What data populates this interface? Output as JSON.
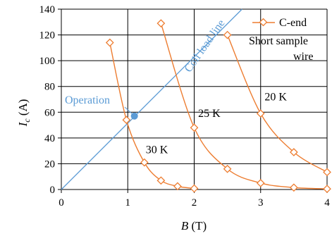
{
  "chart_data": {
    "type": "scatter",
    "xlabel": "B (T)",
    "ylabel": "Ic (A)",
    "xlim": [
      0,
      4
    ],
    "ylim": [
      0,
      140
    ],
    "xticks": [
      "0",
      "1",
      "2",
      "3",
      "4"
    ],
    "yticks": [
      "0",
      "20",
      "40",
      "60",
      "80",
      "100",
      "120",
      "140"
    ],
    "grid": true,
    "legend": {
      "placement": "top-right",
      "entries": [
        "C-end",
        "Short sample",
        "wire"
      ]
    },
    "series": [
      {
        "name": "C-end Short sample wire",
        "label": "30 K",
        "color": "#ED7D31",
        "x": [
          0.73,
          0.98,
          1.25,
          1.5,
          1.75,
          2.0
        ],
        "y": [
          114,
          54,
          21,
          7,
          2.5,
          0.8
        ]
      },
      {
        "name": "C-end Short sample wire",
        "label": "25 K",
        "color": "#ED7D31",
        "x": [
          1.5,
          2.0,
          2.5,
          3.0,
          3.5,
          4.0
        ],
        "y": [
          129,
          48,
          16,
          5,
          1.5,
          0.5
        ]
      },
      {
        "name": "C-end Short sample wire",
        "label": "20 K",
        "color": "#ED7D31",
        "x": [
          2.5,
          3.0,
          3.5,
          4.0
        ],
        "y": [
          120,
          59,
          29,
          13.5
        ]
      }
    ],
    "load_line": {
      "label": "Coil load line",
      "color": "#5B9BD5",
      "x": [
        0,
        2.72
      ],
      "y": [
        0,
        140
      ]
    },
    "operation_point": {
      "label": "Operation",
      "color": "#5B9BD5",
      "x": 1.1,
      "y": 57
    }
  }
}
